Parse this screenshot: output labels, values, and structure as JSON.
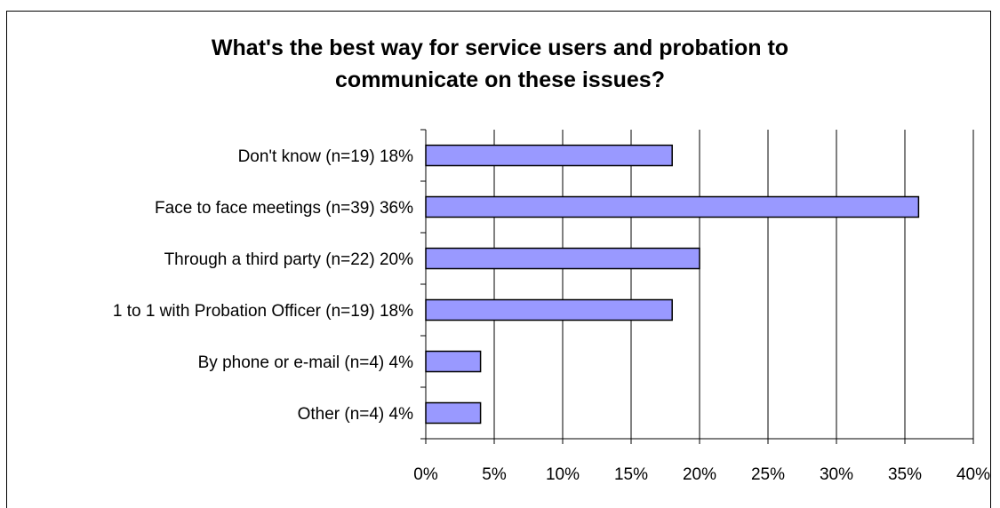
{
  "chart_data": {
    "type": "bar",
    "orientation": "horizontal",
    "title_lines": [
      "What's the best way for service users and probation to",
      "communicate on these issues?"
    ],
    "categories": [
      "Don't know (n=19) 18%",
      "Face to face meetings (n=39) 36%",
      "Through a third party (n=22) 20%",
      "1 to 1 with Probation Officer (n=19) 18%",
      "By phone or e-mail (n=4) 4%",
      "Other (n=4) 4%"
    ],
    "values": [
      18,
      36,
      20,
      18,
      4,
      4
    ],
    "xlim": [
      0,
      40
    ],
    "xticks": [
      0,
      5,
      10,
      15,
      20,
      25,
      30,
      35,
      40
    ],
    "xtick_labels": [
      "0%",
      "5%",
      "10%",
      "15%",
      "20%",
      "25%",
      "30%",
      "35%",
      "40%"
    ],
    "grid": "vertical",
    "bar_color": "#9999ff",
    "bar_border_color": "#000000"
  }
}
